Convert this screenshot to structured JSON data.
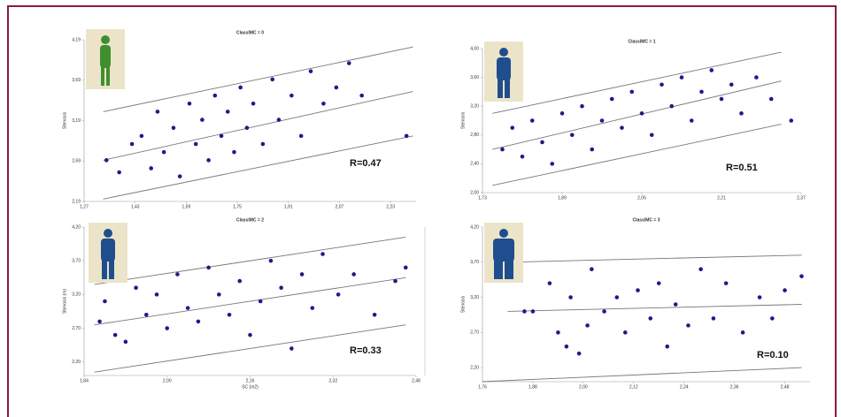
{
  "chart_data": [
    {
      "type": "scatter",
      "title": "ClassIMC = 0",
      "y_label": "Stenosis",
      "annotation": "R=0.47",
      "color": "#1c1c8a",
      "x": [
        1.34,
        1.38,
        1.42,
        1.45,
        1.48,
        1.5,
        1.52,
        1.55,
        1.57,
        1.6,
        1.62,
        1.64,
        1.66,
        1.68,
        1.7,
        1.72,
        1.74,
        1.76,
        1.78,
        1.8,
        1.83,
        1.86,
        1.88,
        1.92,
        1.95,
        1.98,
        2.02,
        2.06,
        2.1,
        2.14,
        2.28
      ],
      "values": [
        2.7,
        2.55,
        2.9,
        3.0,
        2.6,
        3.3,
        2.8,
        3.1,
        2.5,
        3.4,
        2.9,
        3.2,
        2.7,
        3.5,
        3.0,
        3.3,
        2.8,
        3.6,
        3.1,
        3.4,
        2.9,
        3.7,
        3.2,
        3.5,
        3.0,
        3.8,
        3.4,
        3.6,
        3.9,
        3.5,
        3.0
      ],
      "reference_lines": [
        {
          "x": [
            1.33,
            2.3
          ],
          "y": [
            2.22,
            3.0
          ]
        },
        {
          "x": [
            1.33,
            2.3
          ],
          "y": [
            2.7,
            3.55
          ]
        },
        {
          "x": [
            1.33,
            2.3
          ],
          "y": [
            3.3,
            4.1
          ]
        }
      ],
      "xlim": [
        1.27,
        2.31
      ],
      "xticks": [
        {
          "value": 1.27,
          "label": "1,27"
        },
        {
          "value": 1.43,
          "label": "1,43"
        },
        {
          "value": 1.59,
          "label": "1,59"
        },
        {
          "value": 1.75,
          "label": "1,75"
        },
        {
          "value": 1.91,
          "label": "1,91"
        },
        {
          "value": 2.07,
          "label": "2,07"
        },
        {
          "value": 2.23,
          "label": "2,23"
        }
      ],
      "ylim": [
        2.19,
        4.19
      ],
      "yticks": [
        {
          "value": 2.19,
          "label": "2,19"
        },
        {
          "value": 2.69,
          "label": "2,69"
        },
        {
          "value": 3.19,
          "label": "3,19"
        },
        {
          "value": 3.69,
          "label": "3,69"
        },
        {
          "value": 4.19,
          "label": "4,19"
        }
      ]
    },
    {
      "type": "scatter",
      "title": "ClassIMC = 1",
      "y_label": "Stenosis",
      "annotation": "R=0.51",
      "color": "#1c1c8a",
      "x": [
        1.77,
        1.79,
        1.81,
        1.83,
        1.85,
        1.87,
        1.89,
        1.91,
        1.93,
        1.95,
        1.97,
        1.99,
        2.01,
        2.03,
        2.05,
        2.07,
        2.09,
        2.11,
        2.13,
        2.15,
        2.17,
        2.19,
        2.21,
        2.23,
        2.25,
        2.28,
        2.31,
        2.35
      ],
      "values": [
        2.6,
        2.9,
        2.5,
        3.0,
        2.7,
        2.4,
        3.1,
        2.8,
        3.2,
        2.6,
        3.0,
        3.3,
        2.9,
        3.4,
        3.1,
        2.8,
        3.5,
        3.2,
        3.6,
        3.0,
        3.4,
        3.7,
        3.3,
        3.5,
        3.1,
        3.6,
        3.3,
        3.0
      ],
      "reference_lines": [
        {
          "x": [
            1.75,
            2.33
          ],
          "y": [
            2.1,
            2.95
          ]
        },
        {
          "x": [
            1.75,
            2.33
          ],
          "y": [
            2.6,
            3.55
          ]
        },
        {
          "x": [
            1.75,
            2.33
          ],
          "y": [
            3.1,
            3.95
          ]
        }
      ],
      "xlim": [
        1.73,
        2.37
      ],
      "xticks": [
        {
          "value": 1.73,
          "label": "1,73"
        },
        {
          "value": 1.89,
          "label": "1,89"
        },
        {
          "value": 2.05,
          "label": "2,05"
        },
        {
          "value": 2.21,
          "label": "2,21"
        },
        {
          "value": 2.37,
          "label": "2,37"
        }
      ],
      "ylim": [
        2.0,
        4.0
      ],
      "yticks": [
        {
          "value": 2.0,
          "label": "2,00"
        },
        {
          "value": 2.4,
          "label": "2,40"
        },
        {
          "value": 2.8,
          "label": "2,80"
        },
        {
          "value": 3.2,
          "label": "3,20"
        },
        {
          "value": 3.6,
          "label": "3,60"
        },
        {
          "value": 4.0,
          "label": "4,00"
        }
      ]
    },
    {
      "type": "scatter",
      "title": "ClassIMC = 2",
      "y_label": "Stenosis (m)",
      "x_label": "SC (m2)",
      "annotation": "R=0.33",
      "color": "#1c1c8a",
      "x": [
        1.87,
        1.88,
        1.9,
        1.92,
        1.94,
        1.96,
        1.98,
        2.0,
        2.02,
        2.04,
        2.06,
        2.08,
        2.1,
        2.12,
        2.14,
        2.16,
        2.18,
        2.2,
        2.22,
        2.24,
        2.26,
        2.28,
        2.3,
        2.33,
        2.36,
        2.4,
        2.44,
        2.46
      ],
      "values": [
        2.8,
        3.1,
        2.6,
        2.5,
        3.3,
        2.9,
        3.2,
        2.7,
        3.5,
        3.0,
        2.8,
        3.6,
        3.2,
        2.9,
        3.4,
        2.6,
        3.1,
        3.7,
        3.3,
        2.4,
        3.5,
        3.0,
        3.8,
        3.2,
        3.5,
        2.9,
        3.4,
        3.6
      ],
      "reference_lines": [
        {
          "x": [
            1.86,
            2.46
          ],
          "y": [
            2.05,
            2.75
          ]
        },
        {
          "x": [
            1.86,
            2.46
          ],
          "y": [
            2.75,
            3.45
          ]
        },
        {
          "x": [
            1.86,
            2.46
          ],
          "y": [
            3.35,
            4.05
          ]
        }
      ],
      "xlim": [
        1.84,
        2.48
      ],
      "xticks": [
        {
          "value": 1.84,
          "label": "1,84"
        },
        {
          "value": 2.0,
          "label": "2,00"
        },
        {
          "value": 2.16,
          "label": "2,16"
        },
        {
          "value": 2.32,
          "label": "2,32"
        },
        {
          "value": 2.48,
          "label": "2,48"
        }
      ],
      "ylim": [
        2.0,
        4.2
      ],
      "yticks": [
        {
          "value": 2.2,
          "label": "2,20"
        },
        {
          "value": 2.7,
          "label": "2,70"
        },
        {
          "value": 3.2,
          "label": "3,20"
        },
        {
          "value": 3.7,
          "label": "3,70"
        },
        {
          "value": 4.2,
          "label": "4,20"
        }
      ]
    },
    {
      "type": "scatter",
      "title": "ClassIMC = 3",
      "y_label": "Stenosis",
      "annotation": "R=0.10",
      "color": "#1c1c8a",
      "x": [
        1.86,
        1.88,
        1.92,
        1.94,
        1.96,
        1.97,
        1.99,
        2.01,
        2.02,
        2.05,
        2.08,
        2.1,
        2.13,
        2.16,
        2.18,
        2.2,
        2.22,
        2.25,
        2.28,
        2.31,
        2.34,
        2.38,
        2.42,
        2.45,
        2.48,
        2.52
      ],
      "values": [
        3.0,
        3.0,
        3.4,
        2.7,
        2.5,
        3.2,
        2.4,
        2.8,
        3.6,
        3.0,
        3.2,
        2.7,
        3.3,
        2.9,
        3.4,
        2.5,
        3.1,
        2.8,
        3.6,
        2.9,
        3.4,
        2.7,
        3.2,
        2.9,
        3.3,
        3.5
      ],
      "reference_lines": [
        {
          "x": [
            1.76,
            2.52
          ],
          "y": [
            2.0,
            2.2
          ]
        },
        {
          "x": [
            1.82,
            2.52
          ],
          "y": [
            3.0,
            3.1
          ]
        },
        {
          "x": [
            1.82,
            2.52
          ],
          "y": [
            3.7,
            3.8
          ]
        }
      ],
      "xlim": [
        1.76,
        2.54
      ],
      "xticks": [
        {
          "value": 1.76,
          "label": "1,76"
        },
        {
          "value": 1.88,
          "label": "1,88"
        },
        {
          "value": 2.0,
          "label": "2,00"
        },
        {
          "value": 2.12,
          "label": "2,12"
        },
        {
          "value": 2.24,
          "label": "2,24"
        },
        {
          "value": 2.36,
          "label": "2,36"
        },
        {
          "value": 2.48,
          "label": "2,48"
        }
      ],
      "ylim": [
        2.0,
        4.2
      ],
      "yticks": [
        {
          "value": 2.2,
          "label": "2,20"
        },
        {
          "value": 2.7,
          "label": "2,70"
        },
        {
          "value": 3.2,
          "label": "3,20"
        },
        {
          "value": 3.7,
          "label": "3,70"
        },
        {
          "value": 4.2,
          "label": "4,20"
        }
      ]
    }
  ]
}
